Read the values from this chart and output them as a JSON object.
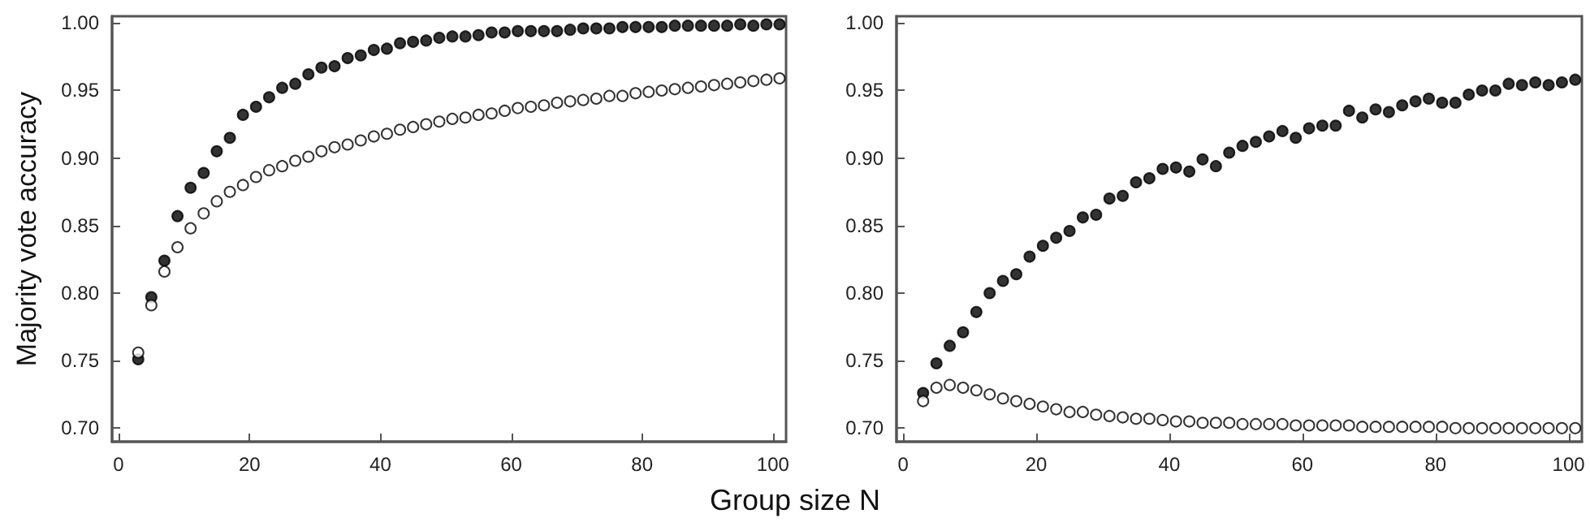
{
  "chart_data": [
    {
      "type": "scatter",
      "ylabel": "Majority vote accuracy",
      "xlabel": "Group size N",
      "x": [
        3,
        5,
        7,
        9,
        11,
        13,
        15,
        17,
        19,
        21,
        23,
        25,
        27,
        29,
        31,
        33,
        35,
        37,
        39,
        41,
        43,
        45,
        47,
        49,
        51,
        53,
        55,
        57,
        59,
        61,
        63,
        65,
        67,
        69,
        71,
        73,
        75,
        77,
        79,
        81,
        83,
        85,
        87,
        89,
        91,
        93,
        95,
        97,
        99,
        101
      ],
      "xlim": [
        -1,
        102
      ],
      "xticks": [
        0,
        20,
        40,
        60,
        80,
        100
      ],
      "ylim": [
        0.69,
        1.005
      ],
      "yticks": [
        {
          "value": 0.7,
          "label": "0.70"
        },
        {
          "value": 0.75,
          "label": "0.75"
        },
        {
          "value": 0.8,
          "label": "0.80"
        },
        {
          "value": 0.85,
          "label": "0.85"
        },
        {
          "value": 0.9,
          "label": "0.90"
        },
        {
          "value": 0.95,
          "label": "0.95"
        },
        {
          "value": 1.0,
          "label": "1.00"
        }
      ],
      "grid": false,
      "marker": "circle",
      "series": [
        {
          "color": "#000000",
          "values": [
            0.751,
            0.797,
            0.824,
            0.857,
            0.878,
            0.889,
            0.905,
            0.915,
            0.932,
            0.938,
            0.945,
            0.952,
            0.955,
            0.962,
            0.967,
            0.968,
            0.974,
            0.976,
            0.98,
            0.981,
            0.985,
            0.986,
            0.987,
            0.989,
            0.99,
            0.99,
            0.991,
            0.993,
            0.993,
            0.994,
            0.994,
            0.994,
            0.994,
            0.995,
            0.996,
            0.996,
            0.996,
            0.997,
            0.997,
            0.997,
            0.997,
            0.998,
            0.998,
            0.998,
            0.998,
            0.998,
            0.999,
            0.998,
            0.999,
            0.999
          ]
        },
        {
          "color": "#ffffff",
          "values": [
            0.756,
            0.791,
            0.816,
            0.834,
            0.848,
            0.859,
            0.868,
            0.875,
            0.88,
            0.886,
            0.891,
            0.894,
            0.898,
            0.901,
            0.905,
            0.908,
            0.91,
            0.913,
            0.916,
            0.918,
            0.921,
            0.923,
            0.925,
            0.927,
            0.929,
            0.93,
            0.932,
            0.933,
            0.935,
            0.937,
            0.938,
            0.939,
            0.941,
            0.942,
            0.943,
            0.944,
            0.946,
            0.946,
            0.948,
            0.949,
            0.95,
            0.951,
            0.952,
            0.953,
            0.954,
            0.955,
            0.956,
            0.957,
            0.958,
            0.959
          ]
        }
      ]
    },
    {
      "type": "scatter",
      "x": [
        3,
        5,
        7,
        9,
        11,
        13,
        15,
        17,
        19,
        21,
        23,
        25,
        27,
        29,
        31,
        33,
        35,
        37,
        39,
        41,
        43,
        45,
        47,
        49,
        51,
        53,
        55,
        57,
        59,
        61,
        63,
        65,
        67,
        69,
        71,
        73,
        75,
        77,
        79,
        81,
        83,
        85,
        87,
        89,
        91,
        93,
        95,
        97,
        99,
        101
      ],
      "xlim": [
        -1,
        102
      ],
      "xticks": [
        0,
        20,
        40,
        60,
        80,
        100
      ],
      "ylim": [
        0.69,
        1.005
      ],
      "yticks": [
        {
          "value": 0.7,
          "label": "0.70"
        },
        {
          "value": 0.75,
          "label": "0.75"
        },
        {
          "value": 0.8,
          "label": "0.80"
        },
        {
          "value": 0.85,
          "label": "0.85"
        },
        {
          "value": 0.9,
          "label": "0.90"
        },
        {
          "value": 0.95,
          "label": "0.95"
        },
        {
          "value": 1.0,
          "label": "1.00"
        }
      ],
      "grid": false,
      "marker": "circle",
      "series": [
        {
          "color": "#000000",
          "values": [
            0.726,
            0.748,
            0.761,
            0.771,
            0.786,
            0.8,
            0.809,
            0.814,
            0.827,
            0.835,
            0.841,
            0.846,
            0.856,
            0.858,
            0.87,
            0.872,
            0.882,
            0.885,
            0.892,
            0.893,
            0.89,
            0.899,
            0.894,
            0.904,
            0.909,
            0.912,
            0.916,
            0.92,
            0.915,
            0.922,
            0.924,
            0.924,
            0.935,
            0.93,
            0.936,
            0.934,
            0.939,
            0.942,
            0.944,
            0.941,
            0.941,
            0.947,
            0.95,
            0.95,
            0.955,
            0.954,
            0.956,
            0.954,
            0.956,
            0.958
          ]
        },
        {
          "color": "#ffffff",
          "values": [
            0.72,
            0.73,
            0.732,
            0.73,
            0.728,
            0.725,
            0.722,
            0.72,
            0.718,
            0.716,
            0.714,
            0.712,
            0.712,
            0.71,
            0.709,
            0.708,
            0.707,
            0.707,
            0.706,
            0.705,
            0.705,
            0.704,
            0.704,
            0.704,
            0.703,
            0.703,
            0.703,
            0.703,
            0.702,
            0.702,
            0.702,
            0.702,
            0.702,
            0.701,
            0.701,
            0.701,
            0.701,
            0.701,
            0.701,
            0.701,
            0.7,
            0.7,
            0.7,
            0.7,
            0.7,
            0.7,
            0.7,
            0.7,
            0.7,
            0.7
          ]
        }
      ]
    }
  ]
}
